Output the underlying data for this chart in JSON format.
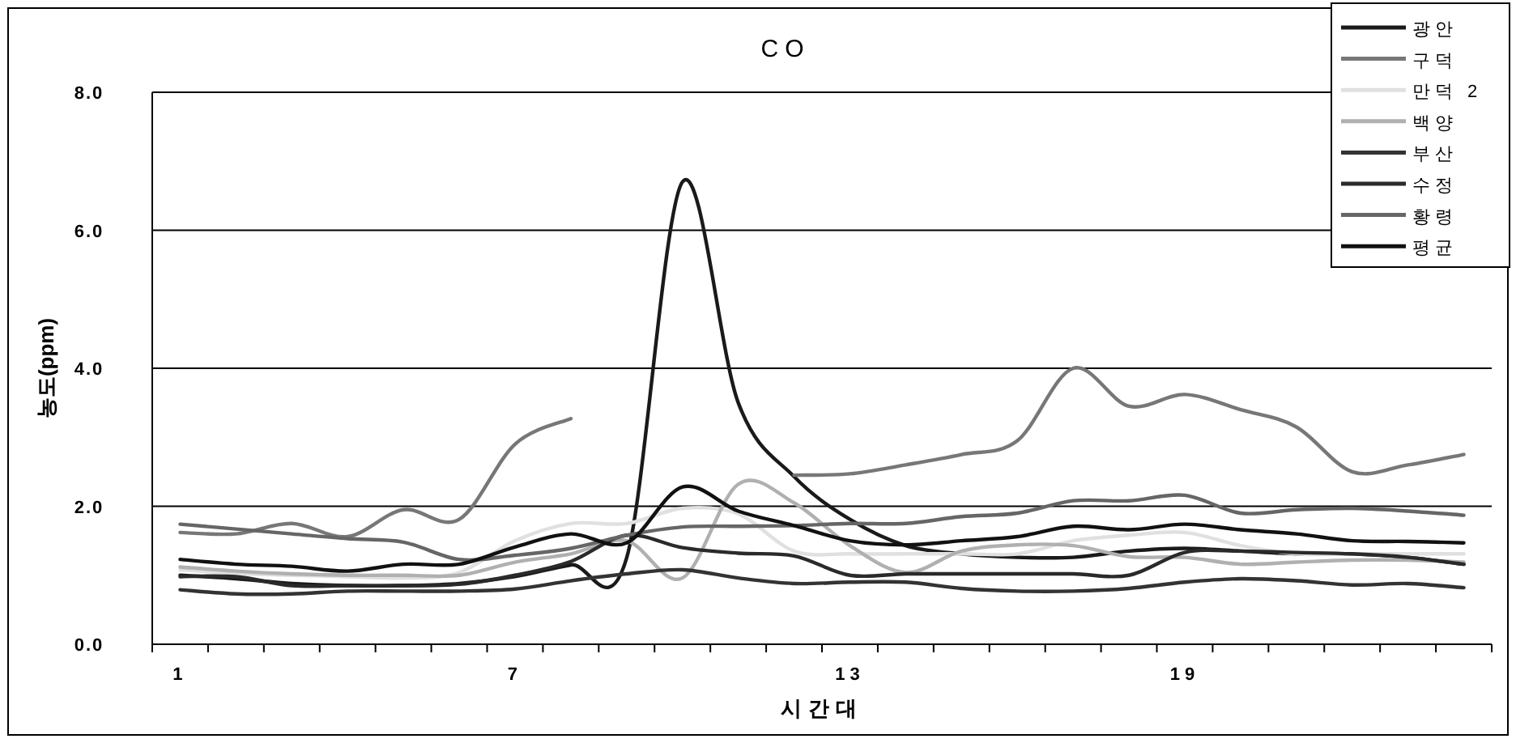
{
  "chart_data": {
    "type": "line",
    "title": "CO",
    "xlabel": "시간대",
    "ylabel": "농도(ppm)",
    "categories": [
      "1",
      null,
      null,
      null,
      null,
      null,
      "7",
      null,
      null,
      null,
      null,
      null,
      "13",
      null,
      null,
      null,
      null,
      null,
      "19",
      null,
      null,
      null,
      null,
      null
    ],
    "ylim": [
      0,
      8
    ],
    "yticks": [
      {
        "value": 0,
        "label": "0.0"
      },
      {
        "value": 2,
        "label": "2.0"
      },
      {
        "value": 4,
        "label": "4.0"
      },
      {
        "value": 6,
        "label": "6.0"
      },
      {
        "value": 8,
        "label": "8.0"
      }
    ],
    "grid": "y",
    "legend": "top right",
    "marker": "none",
    "line_style": "solid",
    "series": [
      {
        "name": "광안",
        "color": "#1a1a1a",
        "values": [
          1.0,
          0.95,
          0.88,
          0.85,
          0.85,
          0.88,
          0.98,
          1.15,
          1.25,
          6.7,
          3.5,
          2.43,
          1.81,
          1.43,
          1.31,
          1.26,
          1.26,
          1.35,
          1.39,
          1.35,
          1.31,
          1.31,
          1.26,
          1.16
        ]
      },
      {
        "name": "구덕",
        "color": "#777777",
        "values": [
          1.62,
          1.6,
          1.75,
          1.56,
          1.95,
          1.81,
          2.9,
          3.27,
          null,
          null,
          null,
          2.45,
          2.47,
          2.6,
          2.75,
          2.95,
          4.0,
          3.45,
          3.62,
          3.4,
          3.15,
          2.5,
          2.6,
          2.75
        ]
      },
      {
        "name": "만덕 2",
        "color": "#e0e0e0",
        "values": [
          1.08,
          1.03,
          1.0,
          0.98,
          0.96,
          1.04,
          1.5,
          1.75,
          1.75,
          1.97,
          1.89,
          1.35,
          1.31,
          1.31,
          1.31,
          1.31,
          1.5,
          1.58,
          1.62,
          1.43,
          1.31,
          1.31,
          1.31,
          1.31
        ]
      },
      {
        "name": "백양",
        "color": "#b0b0b0",
        "values": [
          1.12,
          1.06,
          1.02,
          1.0,
          1.0,
          1.0,
          1.19,
          1.31,
          1.5,
          0.96,
          2.32,
          2.05,
          1.43,
          1.04,
          1.35,
          1.44,
          1.43,
          1.27,
          1.26,
          1.16,
          1.19,
          1.22,
          1.22,
          1.19
        ]
      },
      {
        "name": "부산",
        "color": "#333333",
        "values": [
          0.79,
          0.73,
          0.73,
          0.77,
          0.77,
          0.77,
          0.8,
          0.92,
          1.02,
          1.08,
          0.96,
          0.88,
          0.9,
          0.9,
          0.81,
          0.77,
          0.77,
          0.81,
          0.9,
          0.95,
          0.92,
          0.86,
          0.88,
          0.82
        ]
      },
      {
        "name": "수정",
        "color": "#2a2a2a",
        "values": [
          0.98,
          0.98,
          0.85,
          0.85,
          0.85,
          0.87,
          1.0,
          1.2,
          1.58,
          1.4,
          1.32,
          1.28,
          1.0,
          1.02,
          1.02,
          1.02,
          1.02,
          1.0,
          1.33,
          1.35,
          1.33,
          1.31,
          1.26,
          1.16
        ]
      },
      {
        "name": "황령",
        "color": "#666666",
        "values": [
          1.74,
          1.67,
          1.6,
          1.53,
          1.48,
          1.23,
          1.29,
          1.39,
          1.58,
          1.7,
          1.71,
          1.72,
          1.75,
          1.75,
          1.85,
          1.9,
          2.08,
          2.08,
          2.16,
          1.9,
          1.95,
          1.97,
          1.93,
          1.87
        ]
      },
      {
        "name": "평균",
        "color": "#111111",
        "values": [
          1.23,
          1.16,
          1.13,
          1.06,
          1.16,
          1.16,
          1.41,
          1.6,
          1.47,
          2.28,
          1.93,
          1.72,
          1.5,
          1.44,
          1.5,
          1.56,
          1.71,
          1.66,
          1.74,
          1.66,
          1.6,
          1.5,
          1.49,
          1.47
        ]
      }
    ]
  }
}
